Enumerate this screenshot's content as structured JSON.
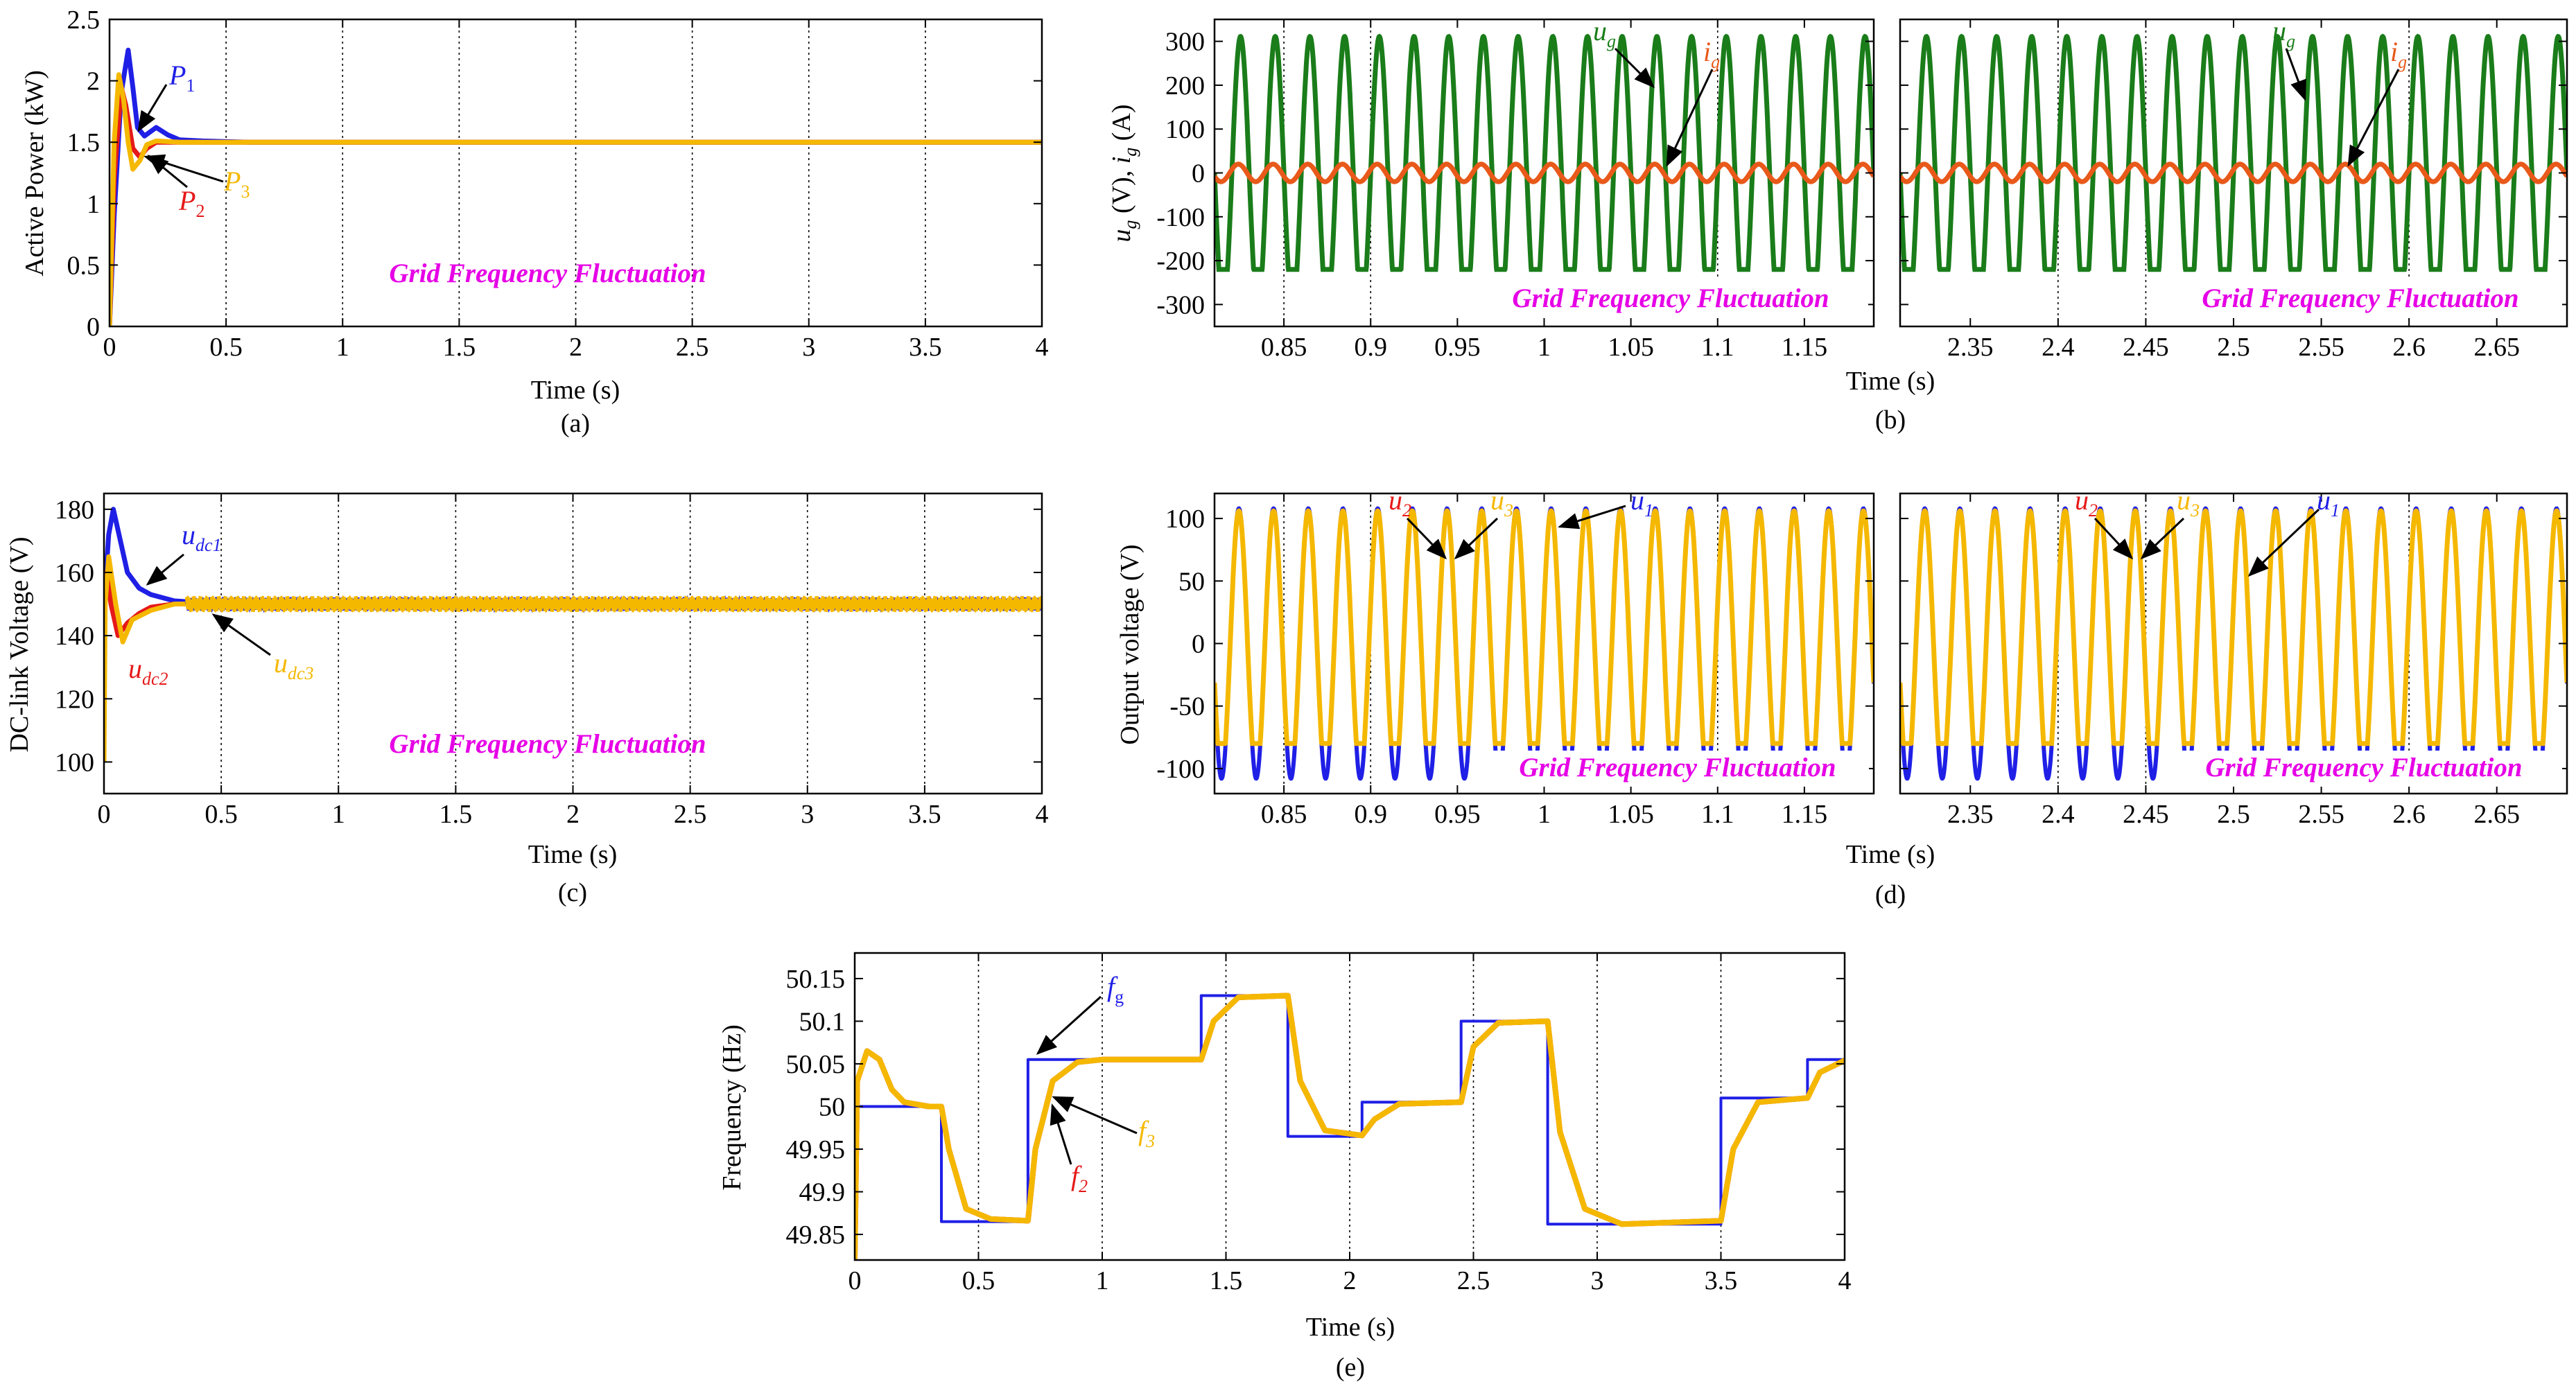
{
  "figure": {
    "panel_labels": [
      "(a)",
      "(b)",
      "(c)",
      "(d)",
      "(e)"
    ],
    "colors": {
      "blue": "#1f1fe6",
      "red": "#e61919",
      "orange": "#f5b800",
      "green": "#1a7d1a",
      "grid_orange": "#e8591a",
      "magenta": "#e600e6",
      "black": "#000000"
    }
  },
  "chart_data": [
    {
      "id": "a",
      "type": "line",
      "title": "",
      "xlabel": "Time (s)",
      "ylabel": "Active Power (kW)",
      "xlim": [
        0,
        4
      ],
      "ylim": [
        0,
        2.5
      ],
      "xticks": [
        "0",
        "0.5",
        "1",
        "1.5",
        "2",
        "2.5",
        "3",
        "3.5",
        "4"
      ],
      "yticks": [
        "0",
        "0.5",
        "1",
        "1.5",
        "2",
        "2.5"
      ],
      "vlines": [
        0.5,
        1,
        1.5,
        2,
        2.5,
        3,
        3.5
      ],
      "annotation_text": "Grid Frequency Fluctuation",
      "series": [
        {
          "name": "P1",
          "color": "blue",
          "x": [
            0,
            0.02,
            0.05,
            0.08,
            0.1,
            0.12,
            0.15,
            0.2,
            0.25,
            0.3,
            0.4,
            0.6,
            4
          ],
          "y": [
            0,
            0.9,
            1.9,
            2.25,
            1.95,
            1.62,
            1.55,
            1.62,
            1.56,
            1.52,
            1.51,
            1.5,
            1.5
          ]
        },
        {
          "name": "P2",
          "color": "red",
          "x": [
            0,
            0.02,
            0.05,
            0.07,
            0.1,
            0.13,
            0.16,
            0.2,
            0.3,
            0.4,
            4
          ],
          "y": [
            0,
            1.2,
            1.95,
            1.8,
            1.45,
            1.38,
            1.45,
            1.5,
            1.5,
            1.5,
            1.5
          ]
        },
        {
          "name": "P3",
          "color": "orange",
          "x": [
            0,
            0.02,
            0.04,
            0.06,
            0.08,
            0.1,
            0.13,
            0.16,
            0.2,
            0.3,
            4
          ],
          "y": [
            0,
            1.5,
            2.05,
            1.85,
            1.5,
            1.28,
            1.35,
            1.48,
            1.51,
            1.5,
            1.5
          ]
        }
      ],
      "callouts": [
        {
          "label": "P",
          "sub": "1",
          "color": "blue"
        },
        {
          "label": "P",
          "sub": "2",
          "color": "red"
        },
        {
          "label": "P",
          "sub": "3",
          "color": "orange"
        }
      ]
    },
    {
      "id": "b",
      "type": "line",
      "title": "",
      "xlabel": "Time (s)",
      "ylabel_main": "u",
      "ylabel_sub": "g",
      "ylabel_mid": " (V), ",
      "ylabel_main2": "i",
      "ylabel_sub2": "g",
      "ylabel_tail": " (A)",
      "ylim": [
        -350,
        350
      ],
      "yticks": [
        "-300",
        "-200",
        "-100",
        "0",
        "100",
        "200",
        "300"
      ],
      "annotation_text": "Grid Frequency Fluctuation",
      "subplots": [
        {
          "xlim": [
            0.81,
            1.19
          ],
          "xticks": [
            "0.85",
            "0.9",
            "0.95",
            "1",
            "1.05",
            "1.1",
            "1.15"
          ],
          "vlines": [
            0.85,
            0.9,
            1.1
          ]
        },
        {
          "xlim": [
            2.31,
            2.69
          ],
          "xticks": [
            "2.35",
            "2.4",
            "2.45",
            "2.5",
            "2.55",
            "2.6",
            "2.65"
          ],
          "vlines": [
            2.4,
            2.45,
            2.6
          ]
        }
      ],
      "series": [
        {
          "name": "ug",
          "color": "green",
          "amplitude": 311,
          "frequency_hz": 50
        },
        {
          "name": "ig",
          "color": "grid_orange",
          "amplitude": 20,
          "frequency_hz": 50
        }
      ],
      "callouts": [
        {
          "label": "u",
          "sub": "g",
          "color": "green"
        },
        {
          "label": "i",
          "sub": "g",
          "color": "grid_orange"
        }
      ]
    },
    {
      "id": "c",
      "type": "line",
      "title": "",
      "xlabel": "Time (s)",
      "ylabel": "DC-link Voltage (V)",
      "xlim": [
        0,
        4
      ],
      "ylim": [
        90,
        185
      ],
      "xticks": [
        "0",
        "0.5",
        "1",
        "1.5",
        "2",
        "2.5",
        "3",
        "3.5",
        "4"
      ],
      "yticks": [
        "100",
        "120",
        "140",
        "160",
        "180"
      ],
      "vlines": [
        0.5,
        1,
        1.5,
        2,
        2.5,
        3,
        3.5
      ],
      "annotation_text": "Grid Frequency Fluctuation",
      "series": [
        {
          "name": "udc1",
          "color": "blue",
          "x": [
            0,
            0.02,
            0.04,
            0.07,
            0.1,
            0.15,
            0.2,
            0.3,
            0.5,
            4
          ],
          "y": [
            150,
            172,
            180,
            170,
            160,
            155,
            153,
            151,
            150,
            150
          ]
        },
        {
          "name": "udc2",
          "color": "red",
          "x": [
            0,
            0.01,
            0.03,
            0.06,
            0.1,
            0.15,
            0.2,
            0.3,
            0.5,
            4
          ],
          "y": [
            150,
            160,
            150,
            140,
            144,
            147,
            149,
            150,
            150,
            150
          ]
        },
        {
          "name": "udc3",
          "color": "orange",
          "x": [
            0,
            0.005,
            0.02,
            0.05,
            0.08,
            0.12,
            0.2,
            0.3,
            0.5,
            4
          ],
          "y": [
            100,
            150,
            165,
            150,
            138,
            145,
            148,
            150,
            150,
            150
          ]
        }
      ],
      "callouts": [
        {
          "label": "u",
          "sub": "dc1",
          "color": "blue"
        },
        {
          "label": "u",
          "sub": "dc2",
          "color": "red"
        },
        {
          "label": "u",
          "sub": "dc3",
          "color": "orange"
        }
      ]
    },
    {
      "id": "d",
      "type": "line",
      "title": "",
      "xlabel": "Time (s)",
      "ylabel": "Output voltage (V)",
      "ylim": [
        -120,
        120
      ],
      "yticks": [
        "-100",
        "-50",
        "0",
        "50",
        "100"
      ],
      "annotation_text": "Grid Frequency Fluctuation",
      "subplots": [
        {
          "xlim": [
            0.81,
            1.19
          ],
          "xticks": [
            "0.85",
            "0.9",
            "0.95",
            "1",
            "1.05",
            "1.1",
            "1.15"
          ],
          "vlines": [
            0.85,
            0.9,
            1.1
          ]
        },
        {
          "xlim": [
            2.31,
            2.69
          ],
          "xticks": [
            "2.35",
            "2.4",
            "2.45",
            "2.5",
            "2.55",
            "2.6",
            "2.65"
          ],
          "vlines": [
            2.4,
            2.45,
            2.6
          ]
        }
      ],
      "series": [
        {
          "name": "u1",
          "color": "blue",
          "amplitude": 108,
          "frequency_hz": 50
        },
        {
          "name": "u2",
          "color": "red",
          "amplitude": 106,
          "frequency_hz": 50
        },
        {
          "name": "u3",
          "color": "orange",
          "amplitude": 106,
          "frequency_hz": 50
        }
      ],
      "callouts": [
        {
          "label": "u",
          "sub": "2",
          "color": "red"
        },
        {
          "label": "u",
          "sub": "3",
          "color": "orange"
        },
        {
          "label": "u",
          "sub": "1",
          "color": "blue"
        }
      ]
    },
    {
      "id": "e",
      "type": "line",
      "title": "",
      "xlabel": "Time (s)",
      "ylabel": "Frequency (Hz)",
      "xlim": [
        0,
        4
      ],
      "ylim": [
        49.82,
        50.18
      ],
      "xticks": [
        "0",
        "0.5",
        "1",
        "1.5",
        "2",
        "2.5",
        "3",
        "3.5",
        "4"
      ],
      "yticks": [
        "49.85",
        "49.9",
        "49.95",
        "50",
        "50.05",
        "50.1",
        "50.15"
      ],
      "vlines": [
        0.5,
        1,
        1.5,
        2,
        2.5,
        3,
        3.5
      ],
      "series": [
        {
          "name": "fg",
          "color": "blue",
          "step": true,
          "x": [
            0,
            0.35,
            0.7,
            1.4,
            1.75,
            2.05,
            2.45,
            2.8,
            3.5,
            3.85,
            4
          ],
          "y": [
            50.0,
            49.865,
            50.055,
            50.13,
            49.965,
            50.005,
            50.1,
            49.862,
            50.01,
            50.055,
            50.055
          ]
        },
        {
          "name": "f2",
          "color": "red",
          "x": [
            0,
            0.01,
            0.05,
            0.1,
            0.15,
            0.2,
            0.3,
            0.35,
            0.38,
            0.45,
            0.55,
            0.7,
            0.73,
            0.8,
            0.9,
            1.0,
            1.4,
            1.45,
            1.55,
            1.75,
            1.8,
            1.9,
            2.05,
            2.1,
            2.2,
            2.45,
            2.5,
            2.6,
            2.8,
            2.85,
            2.95,
            3.1,
            3.5,
            3.55,
            3.65,
            3.85,
            3.9,
            4.0
          ],
          "y": [
            49.82,
            50.03,
            50.065,
            50.055,
            50.02,
            50.005,
            50.0,
            50.0,
            49.95,
            49.88,
            49.868,
            49.866,
            49.95,
            50.03,
            50.052,
            50.055,
            50.055,
            50.1,
            50.128,
            50.13,
            50.03,
            49.972,
            49.966,
            49.985,
            50.003,
            50.005,
            50.07,
            50.098,
            50.1,
            49.97,
            49.88,
            49.862,
            49.866,
            49.95,
            50.005,
            50.01,
            50.04,
            50.054
          ]
        },
        {
          "name": "f3",
          "color": "orange",
          "x": [
            0,
            0.01,
            0.05,
            0.1,
            0.15,
            0.2,
            0.3,
            0.35,
            0.38,
            0.45,
            0.55,
            0.7,
            0.73,
            0.8,
            0.9,
            1.0,
            1.4,
            1.45,
            1.55,
            1.75,
            1.8,
            1.9,
            2.05,
            2.1,
            2.2,
            2.45,
            2.5,
            2.6,
            2.8,
            2.85,
            2.95,
            3.1,
            3.5,
            3.55,
            3.65,
            3.85,
            3.9,
            4.0
          ],
          "y": [
            49.82,
            50.03,
            50.065,
            50.055,
            50.02,
            50.005,
            50.0,
            50.0,
            49.95,
            49.88,
            49.868,
            49.866,
            49.95,
            50.03,
            50.052,
            50.055,
            50.055,
            50.1,
            50.128,
            50.13,
            50.03,
            49.972,
            49.966,
            49.985,
            50.003,
            50.005,
            50.07,
            50.098,
            50.1,
            49.97,
            49.88,
            49.862,
            49.866,
            49.95,
            50.005,
            50.01,
            50.04,
            50.054
          ]
        }
      ],
      "callouts": [
        {
          "label": "f",
          "sub": "g",
          "color": "blue"
        },
        {
          "label": "f",
          "sub": "2",
          "color": "red"
        },
        {
          "label": "f",
          "sub": "3",
          "color": "orange"
        }
      ]
    }
  ]
}
